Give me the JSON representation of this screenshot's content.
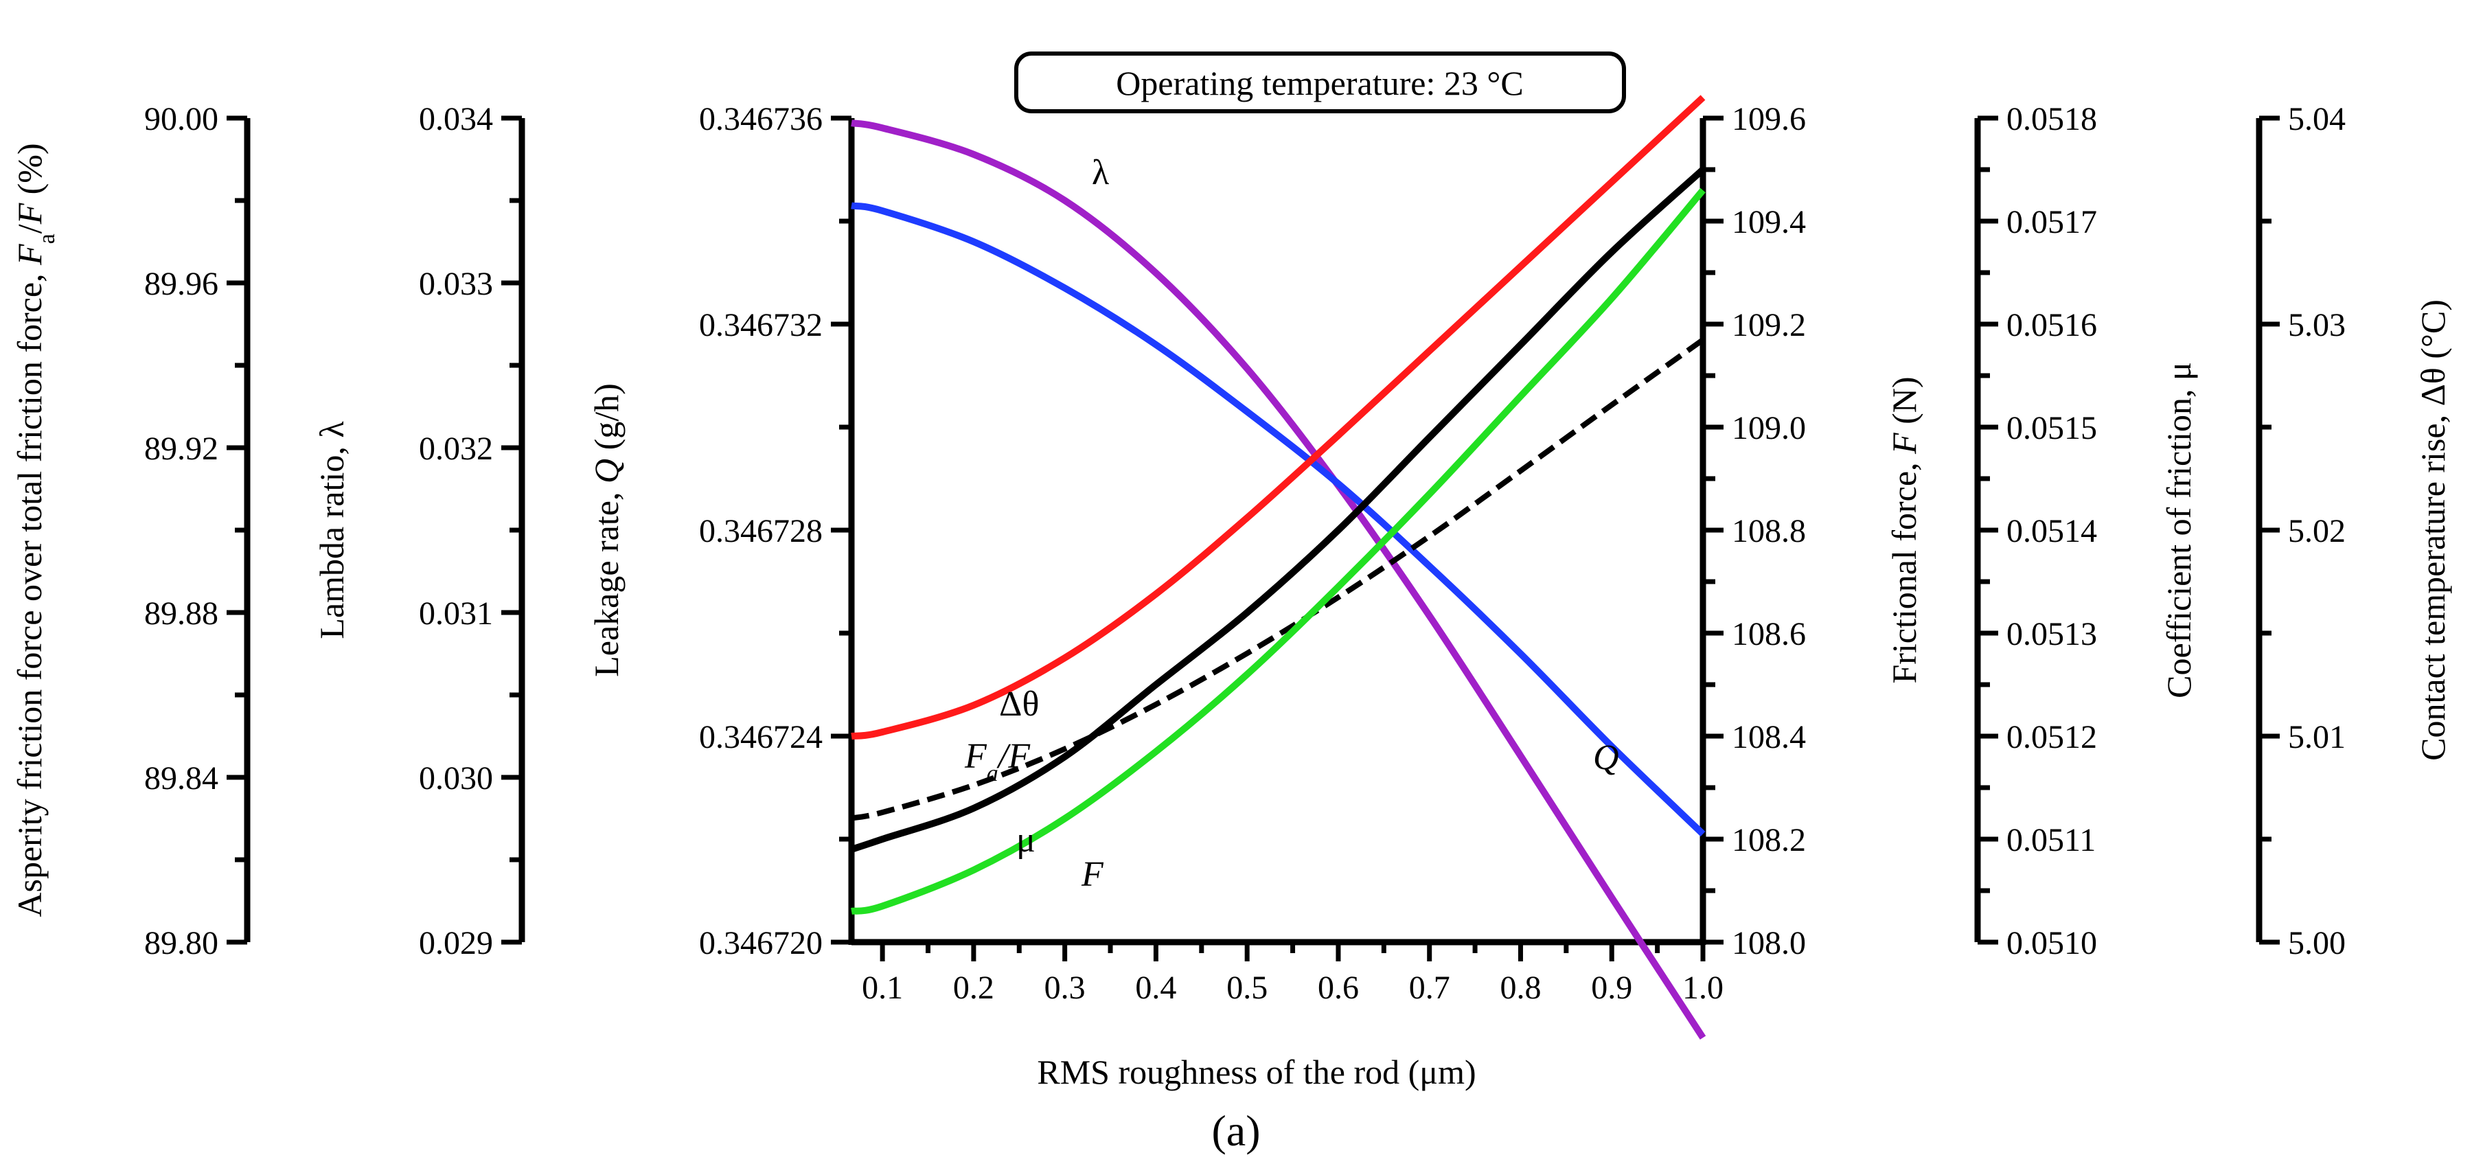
{
  "chart_data": {
    "type": "line",
    "title": "Operating temperature: 23 °C",
    "caption": "(a)",
    "xlabel": "RMS roughness of the rod (μm)",
    "xlim": [
      0.066,
      1.0
    ],
    "xticks": [
      "0.1",
      "0.2",
      "0.3",
      "0.4",
      "0.5",
      "0.6",
      "0.7",
      "0.8",
      "0.9",
      "1.0"
    ],
    "axes": [
      {
        "id": "fa_f",
        "side": "left",
        "title_plain": "Asperity friction force over total friction force, ",
        "title_sym": "F",
        "title_sub": "a",
        "title_rest": "/",
        "title_sym2": "F",
        "title_unit": " (%)",
        "range": [
          89.8,
          90.0
        ],
        "ticks": [
          "89.80",
          "89.84",
          "89.88",
          "89.92",
          "89.96",
          "90.00"
        ]
      },
      {
        "id": "lambda",
        "side": "left",
        "title_plain": "Lambda ratio, λ",
        "range": [
          0.029,
          0.034
        ],
        "ticks": [
          "0.029",
          "0.030",
          "0.031",
          "0.032",
          "0.033",
          "0.034"
        ]
      },
      {
        "id": "Q",
        "side": "left",
        "title_plain": "Leakage rate, ",
        "title_sym": "Q",
        "title_unit": " (g/h)",
        "range": [
          0.34672,
          0.346736
        ],
        "ticks": [
          "0.346720",
          "0.346724",
          "0.346728",
          "0.346732",
          "0.346736"
        ]
      },
      {
        "id": "F",
        "side": "right",
        "title_plain": "Frictional force, ",
        "title_sym": "F",
        "title_unit": " (N)",
        "range": [
          108.0,
          109.6
        ],
        "ticks": [
          "108.0",
          "108.2",
          "108.4",
          "108.6",
          "108.8",
          "109.0",
          "109.2",
          "109.4",
          "109.6"
        ]
      },
      {
        "id": "mu",
        "side": "right",
        "title_plain": "Coefficient of friction, μ",
        "range": [
          0.051,
          0.0518
        ],
        "ticks": [
          "0.0510",
          "0.0511",
          "0.0512",
          "0.0513",
          "0.0514",
          "0.0515",
          "0.0516",
          "0.0517",
          "0.0518"
        ]
      },
      {
        "id": "dtheta",
        "side": "right",
        "title_plain": "Contact temperature rise, Δθ (°C)",
        "range": [
          5.0,
          5.04
        ],
        "ticks": [
          "5.00",
          "5.01",
          "5.02",
          "5.03",
          "5.04"
        ]
      }
    ],
    "series": [
      {
        "name": "λ",
        "axis": "lambda",
        "color": "#a020c8",
        "dash": false,
        "x": [
          0.066,
          0.1,
          0.2,
          0.3,
          0.4,
          0.5,
          0.6,
          0.7,
          0.8,
          0.9,
          1.0
        ],
        "y": [
          0.03397,
          0.03394,
          0.03378,
          0.0335,
          0.03306,
          0.03248,
          0.03177,
          0.03098,
          0.03013,
          0.02927,
          0.02842
        ]
      },
      {
        "name": "Q",
        "axis": "Q",
        "color": "#1e3cff",
        "dash": false,
        "x": [
          0.066,
          0.1,
          0.2,
          0.3,
          0.4,
          0.5,
          0.6,
          0.7,
          0.8,
          0.9,
          1.0
        ],
        "y": [
          0.3467343,
          0.3467342,
          0.3467336,
          0.3467327,
          0.3467316,
          0.3467303,
          0.3467289,
          0.3467273,
          0.3467256,
          0.3467238,
          0.3467221
        ]
      },
      {
        "name": "Δθ",
        "axis": "dtheta",
        "color": "#ff1a1a",
        "dash": false,
        "x": [
          0.066,
          0.1,
          0.2,
          0.3,
          0.4,
          0.5,
          0.6,
          0.7,
          0.8,
          0.9,
          1.0
        ],
        "y": [
          5.01,
          5.0102,
          5.0115,
          5.0138,
          5.0169,
          5.0206,
          5.0246,
          5.0287,
          5.0328,
          5.0369,
          5.041
        ]
      },
      {
        "name": "Fa/F",
        "axis": "fa_f",
        "color": "#000000",
        "dash": true,
        "x": [
          0.066,
          0.1,
          0.2,
          0.3,
          0.4,
          0.5,
          0.6,
          0.7,
          0.8,
          0.9,
          1.0
        ],
        "y": [
          89.8301,
          89.8315,
          89.8381,
          89.8469,
          89.8577,
          89.8701,
          89.8837,
          89.8985,
          89.9144,
          89.9304,
          89.9462
        ]
      },
      {
        "name": "μ",
        "axis": "mu",
        "color": "#000000",
        "dash": false,
        "x": [
          0.066,
          0.1,
          0.2,
          0.3,
          0.4,
          0.5,
          0.6,
          0.7,
          0.8,
          0.9,
          1.0
        ],
        "y": [
          0.05109,
          0.0511,
          0.05113,
          0.05118,
          0.05125,
          0.05132,
          0.0514,
          0.05149,
          0.05158,
          0.05167,
          0.05175
        ]
      },
      {
        "name": "F",
        "axis": "F",
        "color": "#22e022",
        "dash": false,
        "x": [
          0.066,
          0.1,
          0.2,
          0.3,
          0.4,
          0.5,
          0.6,
          0.7,
          0.8,
          0.9,
          1.0
        ],
        "y": [
          108.06,
          108.07,
          108.14,
          108.24,
          108.37,
          108.52,
          108.69,
          108.87,
          109.06,
          109.25,
          109.46
        ]
      }
    ],
    "annotations": [
      {
        "text": "λ",
        "series": "λ",
        "italic": false
      },
      {
        "text": "Q",
        "series": "Q",
        "italic": true
      },
      {
        "text": "Δθ",
        "series": "Δθ",
        "italic": false
      },
      {
        "text": "F",
        "sub": "a",
        "text2": "/F",
        "series": "Fa/F",
        "italic": true
      },
      {
        "text": "μ",
        "series": "μ",
        "italic": false
      },
      {
        "text": "F",
        "series": "F",
        "italic": true
      }
    ]
  }
}
